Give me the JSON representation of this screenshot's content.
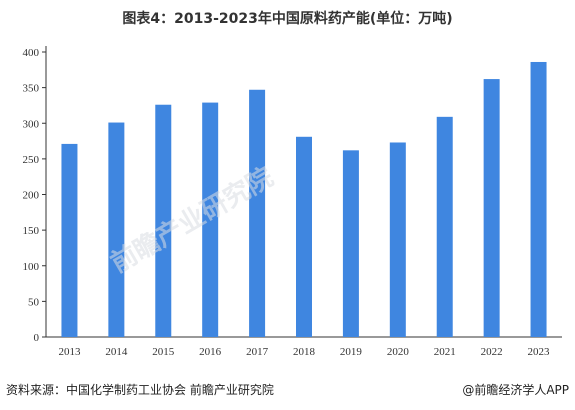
{
  "title": "图表4：2013-2023年中国原料药产能(单位：万吨)",
  "source": "资料来源：中国化学制药工业协会 前瞻产业研究院",
  "credit": "@前瞻经济学人APP",
  "watermark": "前瞻产业研究院",
  "colors": {
    "bar": "#3f86e0",
    "axis": "#333333",
    "text": "#333333"
  },
  "chart_data": {
    "type": "bar",
    "title": "图表4：2013-2023年中国原料药产能(单位：万吨)",
    "xlabel": "",
    "ylabel": "",
    "categories": [
      "2013",
      "2014",
      "2015",
      "2016",
      "2017",
      "2018",
      "2019",
      "2020",
      "2021",
      "2022",
      "2023"
    ],
    "values": [
      271,
      301,
      326,
      329,
      347,
      281,
      262,
      273,
      309,
      362,
      386
    ],
    "ylim": [
      0,
      400
    ],
    "yticks": [
      0,
      50,
      100,
      150,
      200,
      250,
      300,
      350,
      400
    ],
    "grid": false,
    "legend": "none"
  }
}
